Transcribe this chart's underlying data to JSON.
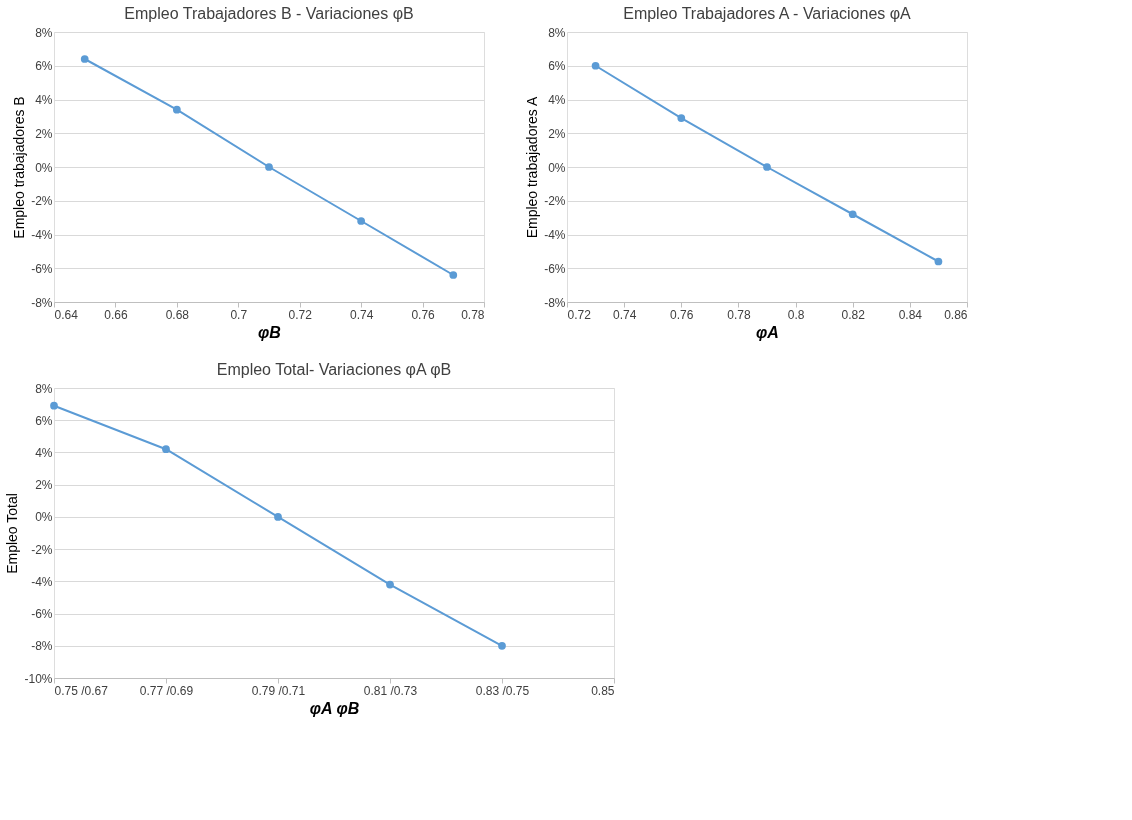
{
  "chart_data": [
    {
      "type": "line",
      "title": "Empleo Trabajadores B - Variaciones φB",
      "xlabel": "φB",
      "ylabel": "Empleo trabajadores B",
      "x": [
        0.65,
        0.68,
        0.71,
        0.74,
        0.77
      ],
      "series": [
        {
          "color": "#5b9bd5",
          "values": [
            6.4,
            3.4,
            0,
            -3.2,
            -6.4
          ]
        }
      ],
      "xlim": [
        0.64,
        0.78
      ],
      "xticks": [
        0.64,
        0.66,
        0.68,
        0.7,
        0.72,
        0.74,
        0.76,
        0.78
      ],
      "ylim": [
        -8,
        8
      ],
      "yticks": [
        {
          "value": -8,
          "label": "-8%"
        },
        {
          "value": -6,
          "label": "-6%"
        },
        {
          "value": -4,
          "label": "-4%"
        },
        {
          "value": -2,
          "label": "-2%"
        },
        {
          "value": 0,
          "label": "0%"
        },
        {
          "value": 2,
          "label": "2%"
        },
        {
          "value": 4,
          "label": "4%"
        },
        {
          "value": 6,
          "label": "6%"
        },
        {
          "value": 8,
          "label": "8%"
        }
      ],
      "grid": "y",
      "marker": "circle",
      "line_style": "solid",
      "legend": false
    },
    {
      "type": "line",
      "title": "Empleo Trabajadores A - Variaciones φA",
      "xlabel": "φA",
      "ylabel": "Empleo trabajadores A",
      "x": [
        0.73,
        0.76,
        0.79,
        0.82,
        0.85
      ],
      "series": [
        {
          "color": "#5b9bd5",
          "values": [
            6.0,
            2.9,
            0,
            -2.8,
            -5.6
          ]
        }
      ],
      "xlim": [
        0.72,
        0.86
      ],
      "xticks": [
        0.72,
        0.74,
        0.76,
        0.78,
        0.8,
        0.82,
        0.84,
        0.86
      ],
      "ylim": [
        -8,
        8
      ],
      "yticks": [
        {
          "value": -8,
          "label": "-8%"
        },
        {
          "value": -6,
          "label": "-6%"
        },
        {
          "value": -4,
          "label": "-4%"
        },
        {
          "value": -2,
          "label": "-2%"
        },
        {
          "value": 0,
          "label": "0%"
        },
        {
          "value": 2,
          "label": "2%"
        },
        {
          "value": 4,
          "label": "4%"
        },
        {
          "value": 6,
          "label": "6%"
        },
        {
          "value": 8,
          "label": "8%"
        }
      ],
      "grid": "y",
      "marker": "circle",
      "line_style": "solid",
      "legend": false
    },
    {
      "type": "line",
      "title": "Empleo Total- Variaciones     φA φB",
      "xlabel": "φA φB",
      "ylabel": "Empleo Total",
      "categories": [
        "0.75 /0.67",
        "0.77 /0.69",
        "0.79 /0.71",
        "0.81 /0.73",
        "0.83 /0.75",
        "0.85"
      ],
      "series": [
        {
          "color": "#5b9bd5",
          "values": [
            6.9,
            4.2,
            0,
            -4.2,
            -8.0,
            null
          ]
        }
      ],
      "ylim": [
        -10,
        8
      ],
      "yticks": [
        {
          "value": -10,
          "label": "-10%"
        },
        {
          "value": -8,
          "label": "-8%"
        },
        {
          "value": -6,
          "label": "-6%"
        },
        {
          "value": -4,
          "label": "-4%"
        },
        {
          "value": -2,
          "label": "-2%"
        },
        {
          "value": 0,
          "label": "0%"
        },
        {
          "value": 2,
          "label": "2%"
        },
        {
          "value": 4,
          "label": "4%"
        },
        {
          "value": 6,
          "label": "6%"
        },
        {
          "value": 8,
          "label": "8%"
        }
      ],
      "grid": "y",
      "marker": "circle",
      "line_style": "solid",
      "legend": false
    }
  ]
}
